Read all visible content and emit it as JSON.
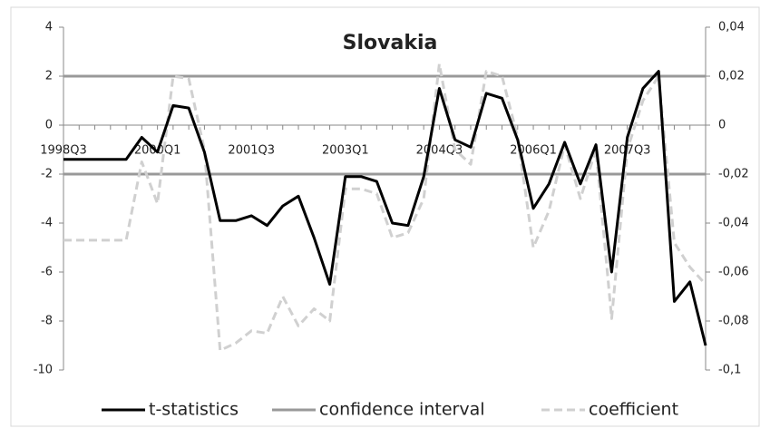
{
  "chart_data": {
    "type": "line",
    "title": "Slovakia",
    "categories": [
      "1998Q3",
      null,
      null,
      null,
      null,
      null,
      "2000Q1",
      null,
      null,
      null,
      null,
      null,
      "2001Q3",
      null,
      null,
      null,
      null,
      null,
      "2003Q1",
      null,
      null,
      null,
      null,
      null,
      "2004Q3",
      null,
      null,
      null,
      null,
      null,
      "2006Q1",
      null,
      null,
      null,
      null,
      null,
      "2007Q3",
      null,
      null,
      null,
      null,
      null
    ],
    "series": [
      {
        "name": "t-statistics",
        "color": "#000000",
        "axis": "y",
        "values": [
          -1.4,
          -1.4,
          -1.4,
          -1.4,
          -1.4,
          -0.5,
          -1.1,
          0.8,
          0.7,
          -1.1,
          -3.9,
          -3.9,
          -3.7,
          -4.1,
          -3.3,
          -2.9,
          -4.6,
          -6.5,
          -2.1,
          -2.1,
          -2.3,
          -4.0,
          -4.1,
          -2.1,
          1.5,
          -0.6,
          -0.9,
          1.3,
          1.1,
          -0.6,
          -3.4,
          -2.4,
          -0.7,
          -2.4,
          -0.8,
          -6.0,
          -0.5,
          1.5,
          2.2,
          -7.2,
          -6.4,
          -9.0
        ]
      },
      {
        "name": "coefficient",
        "color": "#d0d0d0",
        "axis": "y2",
        "dashed": true,
        "values": [
          -0.047,
          -0.047,
          -0.047,
          -0.047,
          -0.047,
          -0.015,
          -0.032,
          0.02,
          0.019,
          -0.01,
          -0.092,
          -0.089,
          -0.084,
          -0.085,
          -0.07,
          -0.082,
          -0.075,
          -0.08,
          -0.026,
          -0.026,
          -0.028,
          -0.046,
          -0.044,
          -0.03,
          0.025,
          -0.01,
          -0.016,
          0.022,
          0.02,
          -0.005,
          -0.05,
          -0.035,
          -0.008,
          -0.03,
          -0.01,
          -0.079,
          -0.01,
          0.01,
          0.02,
          -0.048,
          -0.058,
          -0.065
        ]
      }
    ],
    "confidence_interval": {
      "name": "confidence interval",
      "color": "#999999",
      "values": [
        2,
        -2
      ]
    },
    "ylim": [
      -10,
      4
    ],
    "yticks": [
      4,
      2,
      0,
      -2,
      -4,
      -6,
      -8,
      -10
    ],
    "y2lim": [
      -0.1,
      0.04
    ],
    "y2ticks": [
      {
        "value": 0.04,
        "label": "0,04"
      },
      {
        "value": 0.02,
        "label": "0,02"
      },
      0,
      {
        "value": -0.02,
        "label": "-0,02"
      },
      {
        "value": -0.04,
        "label": "-0,04"
      },
      {
        "value": -0.06,
        "label": "-0,06"
      },
      {
        "value": -0.08,
        "label": "-0,08"
      },
      {
        "value": -0.1,
        "label": "-0,1"
      }
    ],
    "legend": "bottom"
  }
}
